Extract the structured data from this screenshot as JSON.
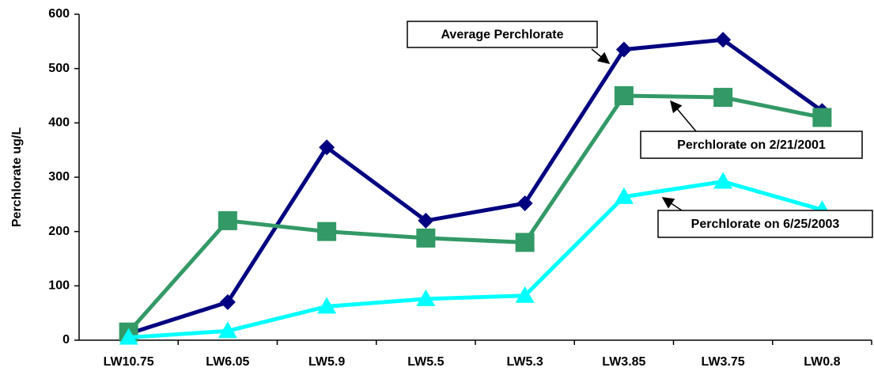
{
  "chart_data": {
    "type": "line",
    "ylabel": "Perchlorate ug/L",
    "categories": [
      "LW10.75",
      "LW6.05",
      "LW5.9",
      "LW5.5",
      "LW5.3",
      "LW3.85",
      "LW3.75",
      "LW0.8"
    ],
    "series": [
      {
        "name": "Average Perchlorate",
        "color": "#000080",
        "marker": "diamond",
        "values": [
          12,
          70,
          355,
          220,
          252,
          535,
          553,
          422
        ]
      },
      {
        "name": "Perchlorate on 2/21/2001",
        "color": "#339966",
        "marker": "square",
        "values": [
          15,
          220,
          200,
          188,
          180,
          450,
          447,
          410
        ]
      },
      {
        "name": "Perchlorate on 6/25/2003",
        "color": "#00ffff",
        "marker": "triangle",
        "values": [
          5,
          17,
          62,
          76,
          82,
          264,
          292,
          240
        ]
      }
    ],
    "ylim": [
      0,
      600
    ],
    "yticks": [
      0,
      100,
      200,
      300,
      400,
      500,
      600
    ],
    "grid": false
  }
}
